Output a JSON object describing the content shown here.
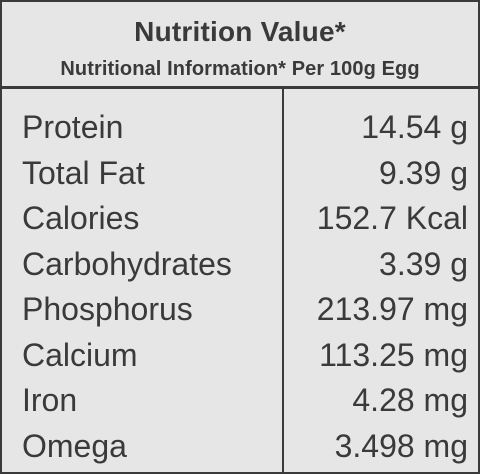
{
  "header": {
    "title": "Nutrition Value*",
    "subtitle": "Nutritional Information* Per 100g Egg"
  },
  "rows": [
    {
      "label": "Protein",
      "value": "14.54 g"
    },
    {
      "label": "Total Fat",
      "value": "9.39 g"
    },
    {
      "label": "Calories",
      "value": "152.7 Kcal"
    },
    {
      "label": "Carbohydrates",
      "value": "3.39 g"
    },
    {
      "label": "Phosphorus",
      "value": "213.97 mg"
    },
    {
      "label": "Calcium",
      "value": "113.25 mg"
    },
    {
      "label": "Iron",
      "value": "4.28 mg"
    },
    {
      "label": "Omega",
      "value": "3.498 mg"
    }
  ],
  "colors": {
    "background": "#e6e6e6",
    "text": "#3a3a3a",
    "border": "#3a3a3a"
  }
}
